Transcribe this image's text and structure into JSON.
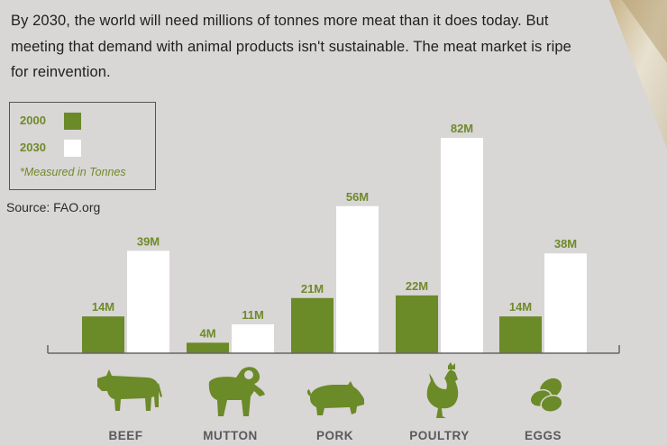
{
  "intro_text": "By 2030, the world will need millions of tonnes more meat than it does today. But meeting that demand with animal products isn't sustainable. The meat market is ripe for reinvention.",
  "legend": {
    "items": [
      {
        "label": "2000",
        "color": "#6b8a28"
      },
      {
        "label": "2030",
        "color": "#ffffff"
      }
    ],
    "note": "*Measured in Tonnes"
  },
  "source": "Source: FAO.org",
  "colors": {
    "accent": "#6b8a28",
    "background": "#d9d6d6",
    "text_green": "#6f8a2a"
  },
  "chart_data": {
    "type": "bar",
    "categories": [
      "BEEF",
      "MUTTON",
      "PORK",
      "POULTRY",
      "EGGS"
    ],
    "icons": [
      "cow-icon",
      "ram-icon",
      "pig-icon",
      "rooster-icon",
      "eggs-icon"
    ],
    "series": [
      {
        "name": "2000",
        "values": [
          14,
          4,
          21,
          22,
          14
        ],
        "labels": [
          "14M",
          "4M",
          "21M",
          "22M",
          "14M"
        ]
      },
      {
        "name": "2030",
        "values": [
          39,
          11,
          56,
          82,
          38
        ],
        "labels": [
          "39M",
          "11M",
          "56M",
          "82M",
          "38M"
        ]
      }
    ],
    "unit": "M",
    "ylim": [
      0,
      82
    ],
    "grid": false,
    "legend_position": "top-left"
  }
}
